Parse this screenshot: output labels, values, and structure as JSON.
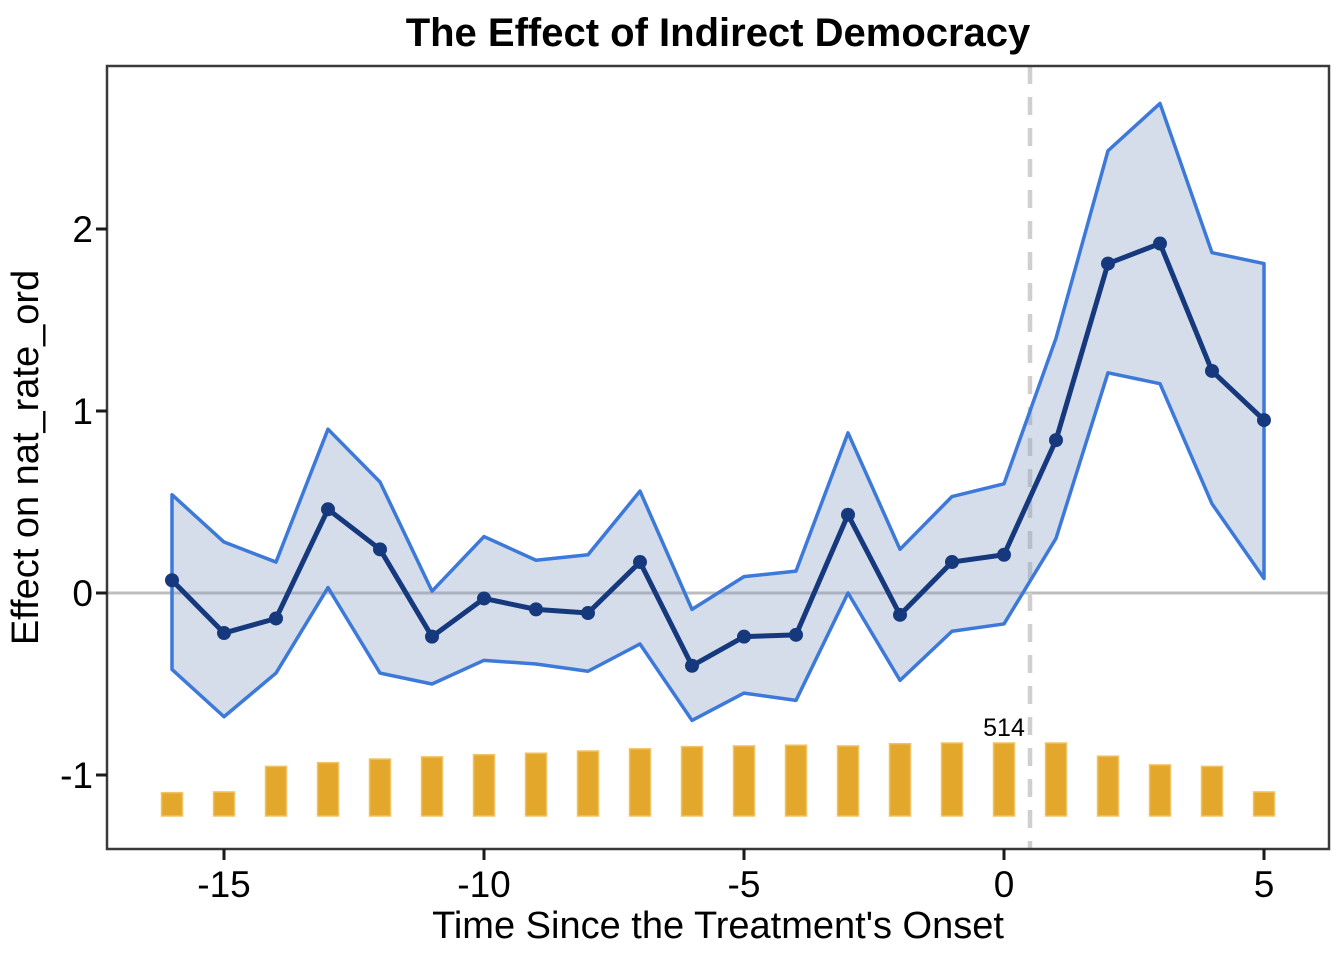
{
  "title": "The Effect of Indirect Democracy",
  "chart_data": {
    "type": "line",
    "title": "The Effect of Indirect Democracy",
    "xlabel": "Time Since the Treatment's Onset",
    "ylabel": "Effect on nat_rate_ord",
    "grid": false,
    "legend_position": "none",
    "xlim": [
      -17.25,
      6.25
    ],
    "ylim": [
      -1.41,
      2.9
    ],
    "x_ticks": [
      -15,
      -10,
      -5,
      0,
      5
    ],
    "x_tick_labels": [
      "-15",
      "-10",
      "-5",
      "0",
      "5"
    ],
    "y_ticks": [
      -1,
      0,
      1,
      2
    ],
    "y_tick_labels": [
      "-1",
      "0",
      "1",
      "2"
    ],
    "x": [
      -16,
      -15,
      -14,
      -13,
      -12,
      -11,
      -10,
      -9,
      -8,
      -7,
      -6,
      -5,
      -4,
      -3,
      -2,
      -1,
      0,
      1,
      2,
      3,
      4,
      5
    ],
    "series": [
      {
        "name": "estimate",
        "values": [
          0.07,
          -0.22,
          -0.14,
          0.46,
          0.24,
          -0.24,
          -0.03,
          -0.09,
          -0.11,
          0.17,
          -0.4,
          -0.24,
          -0.23,
          0.43,
          -0.12,
          0.17,
          0.21,
          0.84,
          1.81,
          1.92,
          1.22,
          0.95
        ]
      },
      {
        "name": "ci_lower",
        "values": [
          -0.42,
          -0.68,
          -0.44,
          0.03,
          -0.44,
          -0.5,
          -0.37,
          -0.39,
          -0.43,
          -0.28,
          -0.7,
          -0.55,
          -0.59,
          0.0,
          -0.48,
          -0.21,
          -0.17,
          0.3,
          1.21,
          1.15,
          0.49,
          0.08
        ]
      },
      {
        "name": "ci_upper",
        "values": [
          0.54,
          0.28,
          0.17,
          0.9,
          0.61,
          0.01,
          0.31,
          0.18,
          0.21,
          0.56,
          -0.09,
          0.09,
          0.12,
          0.88,
          0.24,
          0.53,
          0.6,
          1.4,
          2.43,
          2.69,
          1.87,
          1.81
        ]
      }
    ],
    "bars": {
      "name": "number-of-observations",
      "height_frac": [
        0.32,
        0.33,
        0.68,
        0.73,
        0.78,
        0.81,
        0.84,
        0.86,
        0.89,
        0.92,
        0.95,
        0.96,
        0.97,
        0.96,
        0.99,
        1.0,
        1.0,
        1.0,
        0.82,
        0.7,
        0.68,
        0.33
      ],
      "label": "514",
      "label_x": 0
    },
    "reference": {
      "hline_y": 0,
      "vline_x": 0.5,
      "vline_style": "dashed"
    },
    "colors": {
      "line": "#16397E",
      "band_edge": "#3C79D9",
      "band_fill": "rgba(135,158,198,0.35)",
      "bar_fill": "#E3A72B",
      "bar_edge": "#F0C266",
      "zero_line": "#BDBDBD",
      "dashed_line": "#CFCFCF",
      "panel_border": "#3A3A3A",
      "tick": "#1a1a1a",
      "text": "#000000"
    }
  }
}
